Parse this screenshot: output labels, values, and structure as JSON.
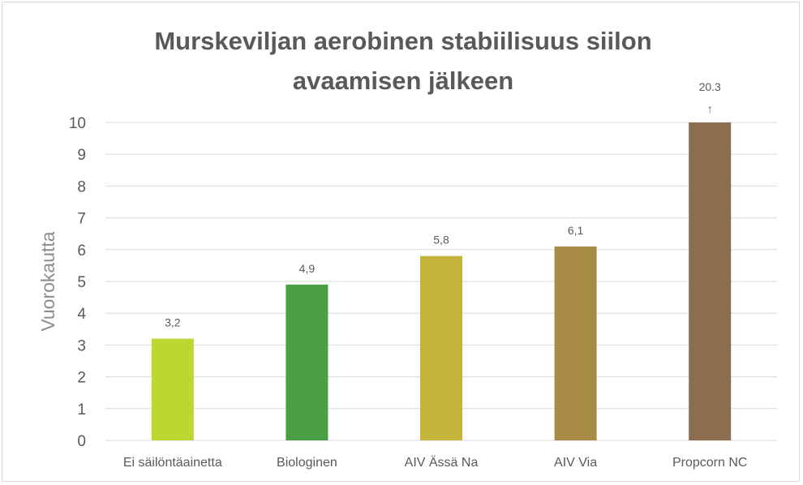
{
  "chart_data": {
    "type": "bar",
    "title_lines": [
      "Murskeviljan aerobinen stabiilisuus siilon",
      "avaamisen jälkeen"
    ],
    "ylabel": "Vuorokautta",
    "xlabel": "",
    "ylim": [
      0,
      10
    ],
    "yticks": [
      "0",
      "1",
      "2",
      "3",
      "4",
      "5",
      "6",
      "7",
      "8",
      "9",
      "10"
    ],
    "grid": true,
    "categories": [
      "Ei säilöntäainetta",
      "Biologinen",
      "AIV Ässä Na",
      "AIV Via",
      "Propcorn NC"
    ],
    "values": [
      3.2,
      4.9,
      5.8,
      6.1,
      20.3
    ],
    "data_labels": [
      "3,2",
      "4,9",
      "5,8",
      "6,1",
      "20.3"
    ],
    "overflow_arrow": "↑",
    "colors": [
      "#bed630",
      "#4a9e44",
      "#c4b43a",
      "#a88b45",
      "#8c6d50"
    ]
  }
}
